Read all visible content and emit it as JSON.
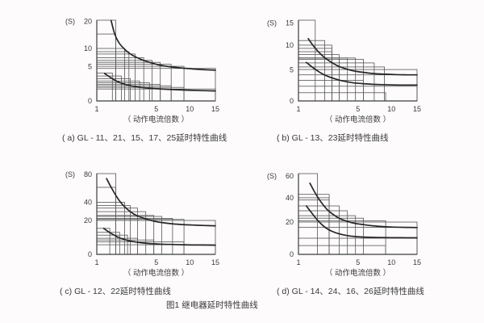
{
  "page": {
    "background": "#fdfbfb",
    "grid_line_color": "#565656",
    "axis_color": "#3d3d3d",
    "curve_color": "#262626",
    "text_color": "#3a3a3a"
  },
  "figure": {
    "caption": "图1  继电器延时特性曲线"
  },
  "chart_data": [
    {
      "panel": "a",
      "type": "line",
      "caption": "( a) GL - 11、21、15、17、25延时特性曲线",
      "y_unit_label": "(S)",
      "xlabel": "（ 动作电流倍数 ）",
      "xlim": [
        1,
        15
      ],
      "xticks": [
        1,
        5,
        10,
        15
      ],
      "ylim": [
        0,
        20.5
      ],
      "yticks": [
        0,
        5,
        10,
        20
      ],
      "x_power": 0.55,
      "y_power": 0.6,
      "grid": true,
      "legend": "none",
      "steps": [
        [
          1.5,
          20.5
        ],
        [
          1.5,
          15
        ],
        [
          2,
          10
        ],
        [
          2.3,
          9
        ],
        [
          2.8,
          8.3
        ],
        [
          3.6,
          7.2
        ],
        [
          4.5,
          6.5
        ],
        [
          5.5,
          6
        ],
        [
          7,
          5.5
        ],
        [
          9,
          5
        ],
        [
          15,
          4.5
        ],
        [
          1.35,
          3.5
        ],
        [
          1.8,
          2.9
        ],
        [
          2.4,
          2.4
        ],
        [
          3.2,
          2
        ],
        [
          4.2,
          1.7
        ],
        [
          5.5,
          1.45
        ],
        [
          7,
          1.25
        ],
        [
          9,
          1.05
        ],
        [
          15,
          0.85
        ]
      ],
      "series": [
        {
          "name": "upper_limit_curve",
          "points": [
            [
              1.3,
              20.3
            ],
            [
              1.45,
              15
            ],
            [
              1.65,
              12
            ],
            [
              1.95,
              10
            ],
            [
              2.3,
              8.6
            ],
            [
              2.8,
              7.5
            ],
            [
              3.4,
              6.7
            ],
            [
              4.2,
              6
            ],
            [
              5,
              5.5
            ],
            [
              6,
              5.1
            ],
            [
              7.5,
              4.75
            ],
            [
              9,
              4.55
            ],
            [
              11,
              4.35
            ],
            [
              13,
              4.2
            ],
            [
              15,
              4.1
            ]
          ]
        },
        {
          "name": "lower_limit_curve",
          "points": [
            [
              1.1,
              3.4
            ],
            [
              1.25,
              2.7
            ],
            [
              1.45,
              2.15
            ],
            [
              1.7,
              1.75
            ],
            [
              2,
              1.5
            ],
            [
              2.4,
              1.28
            ],
            [
              3,
              1.1
            ],
            [
              3.8,
              0.98
            ],
            [
              4.8,
              0.9
            ],
            [
              6,
              0.83
            ],
            [
              7.5,
              0.77
            ],
            [
              9.5,
              0.72
            ],
            [
              12,
              0.67
            ],
            [
              15,
              0.63
            ]
          ]
        }
      ]
    },
    {
      "panel": "b",
      "type": "line",
      "caption": "( b) GL - 13、23延时特性曲线",
      "y_unit_label": "(S)",
      "xlabel": "（ 动作电流倍数 ）",
      "xlim": [
        1,
        15
      ],
      "xticks": [
        1,
        5,
        10,
        15
      ],
      "ylim": [
        0,
        15.6
      ],
      "yticks": [
        0,
        5,
        10,
        15
      ],
      "x_power": 0.55,
      "y_power": 0.83,
      "grid": true,
      "legend": "none",
      "steps": [
        [
          1.4,
          15.6
        ],
        [
          1.9,
          11
        ],
        [
          2.4,
          10
        ],
        [
          2.4,
          9.3
        ],
        [
          2.4,
          8.6
        ],
        [
          3,
          8
        ],
        [
          3,
          7.3
        ],
        [
          3.8,
          7.3
        ],
        [
          4.7,
          7.3
        ],
        [
          5.7,
          7
        ],
        [
          7.2,
          6.3
        ],
        [
          8.8,
          5.5
        ],
        [
          15,
          5
        ],
        [
          15,
          4
        ],
        [
          5.7,
          3
        ],
        [
          15,
          2
        ],
        [
          9,
          1
        ]
      ],
      "series": [
        {
          "name": "upper_limit_curve",
          "points": [
            [
              1.15,
              11.4
            ],
            [
              1.3,
              10
            ],
            [
              1.5,
              8.8
            ],
            [
              1.75,
              7.8
            ],
            [
              2.1,
              6.9
            ],
            [
              2.5,
              6.2
            ],
            [
              3,
              5.6
            ],
            [
              3.8,
              5.05
            ],
            [
              4.6,
              4.7
            ],
            [
              5.5,
              4.5
            ],
            [
              7,
              4.25
            ],
            [
              8.5,
              4.15
            ],
            [
              10.5,
              4.05
            ],
            [
              13,
              4
            ],
            [
              15,
              4
            ]
          ]
        },
        {
          "name": "lower_limit_curve",
          "points": [
            [
              1.1,
              6.4
            ],
            [
              1.25,
              5.6
            ],
            [
              1.45,
              4.9
            ],
            [
              1.7,
              4.3
            ],
            [
              2,
              3.85
            ],
            [
              2.4,
              3.45
            ],
            [
              3,
              3.05
            ],
            [
              3.8,
              2.75
            ],
            [
              4.6,
              2.55
            ],
            [
              5.5,
              2.45
            ],
            [
              7,
              2.33
            ],
            [
              8.5,
              2.27
            ],
            [
              10.5,
              2.22
            ],
            [
              13,
              2.2
            ],
            [
              15,
              2.2
            ]
          ]
        }
      ]
    },
    {
      "panel": "c",
      "type": "line",
      "caption": "( c) GL - 12、22延时特性曲线",
      "y_unit_label": "(S)",
      "xlabel": "（ 动作电流倍数 ）",
      "xlim": [
        1,
        15
      ],
      "xticks": [
        1,
        5,
        10,
        15
      ],
      "ylim": [
        0,
        81
      ],
      "yticks": [
        0,
        20,
        40,
        80
      ],
      "x_power": 0.55,
      "y_power": 0.62,
      "grid": true,
      "legend": "none",
      "steps": [
        [
          1.5,
          81
        ],
        [
          1.5,
          60
        ],
        [
          2,
          40
        ],
        [
          2.4,
          36
        ],
        [
          3,
          33
        ],
        [
          3.8,
          29
        ],
        [
          4.7,
          25
        ],
        [
          5.7,
          24
        ],
        [
          7.2,
          22
        ],
        [
          9,
          21
        ],
        [
          15,
          20
        ],
        [
          1.25,
          13
        ],
        [
          1.7,
          10
        ],
        [
          2.2,
          8
        ],
        [
          3,
          6
        ],
        [
          4.7,
          5
        ],
        [
          9,
          4
        ],
        [
          15,
          2.6
        ]
      ],
      "series": [
        {
          "name": "upper_limit_curve",
          "points": [
            [
              1.15,
              73
            ],
            [
              1.3,
              60
            ],
            [
              1.5,
              49
            ],
            [
              1.75,
              40
            ],
            [
              2.1,
              33
            ],
            [
              2.5,
              28
            ],
            [
              3,
              24.5
            ],
            [
              3.8,
              21.5
            ],
            [
              4.6,
              19.5
            ],
            [
              5.5,
              18.2
            ],
            [
              7,
              17
            ],
            [
              8.5,
              16.3
            ],
            [
              10.5,
              15.8
            ],
            [
              13,
              15.4
            ],
            [
              15,
              15.2
            ]
          ]
        },
        {
          "name": "lower_limit_curve",
          "points": [
            [
              1.08,
              13
            ],
            [
              1.2,
              10.5
            ],
            [
              1.4,
              8.2
            ],
            [
              1.65,
              6.5
            ],
            [
              1.95,
              5.4
            ],
            [
              2.35,
              4.5
            ],
            [
              2.9,
              3.9
            ],
            [
              3.6,
              3.4
            ],
            [
              4.5,
              3.1
            ],
            [
              5.5,
              2.9
            ],
            [
              7,
              2.75
            ],
            [
              9,
              2.6
            ],
            [
              12,
              2.5
            ],
            [
              15,
              2.45
            ]
          ]
        }
      ]
    },
    {
      "panel": "d",
      "type": "line",
      "caption": "( d) GL - 14、24、16、26延时特性曲线",
      "y_unit_label": "(S)",
      "xlabel": "（ 动作电流倍数 ）",
      "xlim": [
        1,
        15
      ],
      "xticks": [
        1,
        5,
        10,
        15
      ],
      "ylim": [
        0,
        62
      ],
      "yticks": [
        0,
        20,
        40,
        60
      ],
      "x_power": 0.55,
      "y_power": 0.81,
      "grid": true,
      "legend": "none",
      "steps": [
        [
          1.5,
          62
        ],
        [
          2.2,
          43
        ],
        [
          2.2,
          40
        ],
        [
          2.2,
          38
        ],
        [
          3,
          33
        ],
        [
          3.8,
          29
        ],
        [
          4.7,
          25
        ],
        [
          5.7,
          23
        ],
        [
          9,
          21
        ],
        [
          15,
          20
        ],
        [
          15,
          16
        ],
        [
          15,
          8.5
        ],
        [
          9,
          4
        ]
      ],
      "series": [
        {
          "name": "upper_limit_curve",
          "points": [
            [
              1.2,
              53
            ],
            [
              1.35,
              46
            ],
            [
              1.55,
              39.5
            ],
            [
              1.8,
              34
            ],
            [
              2.1,
              29.5
            ],
            [
              2.5,
              26
            ],
            [
              3,
              23
            ],
            [
              3.8,
              20.5
            ],
            [
              4.6,
              19
            ],
            [
              5.5,
              18.2
            ],
            [
              7,
              17.2
            ],
            [
              8.5,
              16.6
            ],
            [
              10.5,
              16.2
            ],
            [
              13,
              16
            ],
            [
              15,
              15.9
            ]
          ]
        },
        {
          "name": "lower_limit_curve",
          "points": [
            [
              1.1,
              33
            ],
            [
              1.25,
              27.5
            ],
            [
              1.45,
              22.5
            ],
            [
              1.7,
              18.5
            ],
            [
              2,
              15.5
            ],
            [
              2.4,
              13.2
            ],
            [
              3,
              11.4
            ],
            [
              3.8,
              10.2
            ],
            [
              4.6,
              9.6
            ],
            [
              5.5,
              9.3
            ],
            [
              7,
              9.05
            ],
            [
              9,
              8.9
            ],
            [
              11.5,
              8.8
            ],
            [
              15,
              8.75
            ]
          ]
        }
      ]
    }
  ]
}
